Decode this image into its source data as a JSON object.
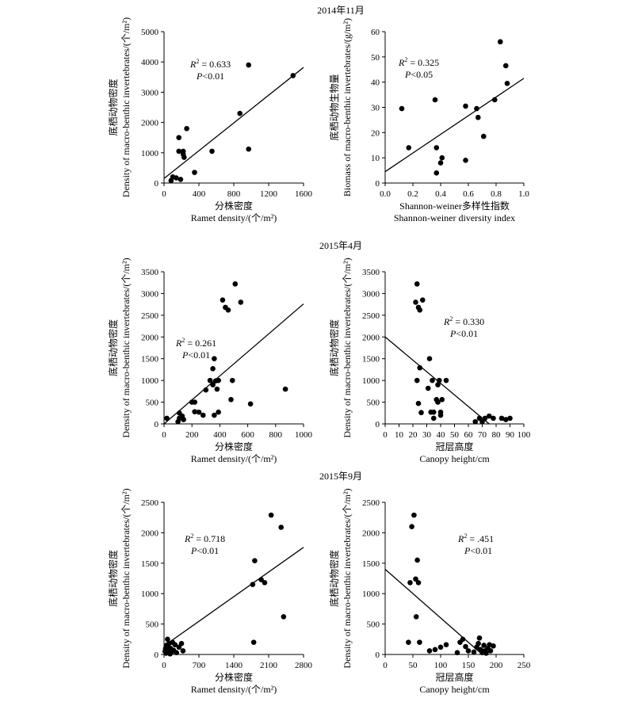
{
  "sections": [
    {
      "title": "2014年11月"
    },
    {
      "title": "2015年4月"
    },
    {
      "title": "2015年9月"
    }
  ],
  "chart_data": [
    {
      "type": "scatter",
      "section": "2014年11月",
      "xlabel_cn": "分株密度",
      "xlabel_en": "Ramet density/(个/m²)",
      "ylabel_cn": "底栖动物密度",
      "ylabel_en": "Density of macro-benthic invertebrates/(个/m²)",
      "xlim": [
        0,
        1600
      ],
      "ylim": [
        0,
        5000
      ],
      "xticks": [
        "0",
        "400",
        "800",
        "1200",
        "1600"
      ],
      "yticks": [
        "0",
        "1000",
        "2000",
        "3000",
        "4000",
        "5000"
      ],
      "annotation": {
        "r2_label": "R",
        "r2_sup": "2",
        "r2_value": " = 0.633",
        "p_label": "P",
        "p_value": "<0.01"
      },
      "points": [
        [
          80,
          80
        ],
        [
          100,
          200
        ],
        [
          140,
          170
        ],
        [
          170,
          1500
        ],
        [
          170,
          1050
        ],
        [
          220,
          950
        ],
        [
          220,
          1050
        ],
        [
          230,
          850
        ],
        [
          260,
          1800
        ],
        [
          350,
          350
        ],
        [
          190,
          120
        ],
        [
          550,
          1050
        ],
        [
          870,
          2300
        ],
        [
          970,
          3900
        ],
        [
          970,
          1120
        ],
        [
          1480,
          3550
        ]
      ],
      "fit": [
        [
          0,
          150
        ],
        [
          1600,
          3820
        ]
      ]
    },
    {
      "type": "scatter",
      "section": "2014年11月",
      "xlabel_cn": "Shannon-weiner多样性指数",
      "xlabel_en": "Shannon-weiner diversity index",
      "ylabel_cn": "底栖动物生物量",
      "ylabel_en": "Biomass of macro-benthic invertebrates/(g/m²)",
      "xlim": [
        0,
        1.0
      ],
      "ylim": [
        0,
        60
      ],
      "xticks": [
        "0.0",
        "0.2",
        "0.4",
        "0.6",
        "0.8",
        "1.0"
      ],
      "yticks": [
        "0",
        "10",
        "20",
        "30",
        "40",
        "50",
        "60"
      ],
      "annotation": {
        "r2_label": "R",
        "r2_sup": "2",
        "r2_value": " = 0.325",
        "p_label": "P",
        "p_value": "<0.05"
      },
      "points": [
        [
          0.12,
          29.5
        ],
        [
          0.17,
          14
        ],
        [
          0.36,
          33
        ],
        [
          0.37,
          14
        ],
        [
          0.37,
          4
        ],
        [
          0.4,
          8
        ],
        [
          0.41,
          10
        ],
        [
          0.58,
          30.5
        ],
        [
          0.58,
          9
        ],
        [
          0.66,
          29.5
        ],
        [
          0.67,
          26
        ],
        [
          0.71,
          18.5
        ],
        [
          0.79,
          33
        ],
        [
          0.83,
          56
        ],
        [
          0.87,
          46.5
        ],
        [
          0.88,
          39.5
        ]
      ],
      "fit": [
        [
          0,
          4.5
        ],
        [
          1.0,
          41.5
        ]
      ]
    },
    {
      "type": "scatter",
      "section": "2015年4月",
      "xlabel_cn": "分株密度",
      "xlabel_en": "Ramet density/(个/m²)",
      "ylabel_cn": "底栖动物密度",
      "ylabel_en": "Density of macro-benthic invertebrates/(个/m²)",
      "xlim": [
        0,
        1000
      ],
      "ylim": [
        0,
        3500
      ],
      "xticks": [
        "0",
        "200",
        "400",
        "600",
        "800",
        "1000"
      ],
      "yticks": [
        "0",
        "500",
        "1000",
        "1500",
        "2000",
        "2500",
        "3000",
        "3500"
      ],
      "annotation": {
        "r2_label": "R",
        "r2_sup": "2",
        "r2_value": " = 0.261",
        "p_label": "P",
        "p_value": "<0.01"
      },
      "points": [
        [
          20,
          130
        ],
        [
          100,
          50
        ],
        [
          110,
          250
        ],
        [
          110,
          130
        ],
        [
          130,
          180
        ],
        [
          140,
          100
        ],
        [
          200,
          500
        ],
        [
          220,
          280
        ],
        [
          220,
          500
        ],
        [
          250,
          270
        ],
        [
          280,
          200
        ],
        [
          300,
          780
        ],
        [
          330,
          1000
        ],
        [
          350,
          1270
        ],
        [
          350,
          900
        ],
        [
          360,
          1500
        ],
        [
          360,
          200
        ],
        [
          370,
          990
        ],
        [
          380,
          800
        ],
        [
          390,
          1000
        ],
        [
          390,
          270
        ],
        [
          420,
          2850
        ],
        [
          440,
          2680
        ],
        [
          460,
          2620
        ],
        [
          480,
          560
        ],
        [
          490,
          1000
        ],
        [
          510,
          3220
        ],
        [
          550,
          2800
        ],
        [
          620,
          460
        ],
        [
          870,
          800
        ]
      ],
      "fit": [
        [
          0,
          0
        ],
        [
          1000,
          2760
        ]
      ]
    },
    {
      "type": "scatter",
      "section": "2015年4月",
      "xlabel_cn": "冠层高度",
      "xlabel_en": "Canopy  height/cm",
      "ylabel_cn": "底栖动物密度",
      "ylabel_en": "Density of macro-benthic invertebrates/(个/m²)",
      "xlim": [
        0,
        100
      ],
      "ylim": [
        0,
        3500
      ],
      "xticks": [
        "0",
        "10",
        "20",
        "30",
        "40",
        "50",
        "60",
        "70",
        "80",
        "90",
        "100"
      ],
      "yticks": [
        "0",
        "500",
        "1000",
        "1500",
        "2000",
        "2500",
        "3000",
        "3500"
      ],
      "annotation": {
        "r2_label": "R",
        "r2_sup": "2",
        "r2_value": " = 0.330",
        "p_label": "P",
        "p_value": "<0.01"
      },
      "points": [
        [
          22,
          2800
        ],
        [
          23,
          3220
        ],
        [
          24,
          2680
        ],
        [
          25,
          2620
        ],
        [
          27,
          2850
        ],
        [
          23,
          1000
        ],
        [
          25,
          1290
        ],
        [
          24,
          470
        ],
        [
          26,
          260
        ],
        [
          31,
          820
        ],
        [
          32,
          1500
        ],
        [
          33,
          270
        ],
        [
          34,
          1000
        ],
        [
          35,
          130
        ],
        [
          35,
          270
        ],
        [
          37,
          560
        ],
        [
          38,
          900
        ],
        [
          38,
          500
        ],
        [
          39,
          1000
        ],
        [
          40,
          270
        ],
        [
          41,
          560
        ],
        [
          40,
          200
        ],
        [
          44,
          1000
        ],
        [
          65,
          50
        ],
        [
          68,
          130
        ],
        [
          70,
          50
        ],
        [
          72,
          130
        ],
        [
          75,
          180
        ],
        [
          78,
          130
        ],
        [
          84,
          130
        ],
        [
          87,
          100
        ],
        [
          90,
          130
        ]
      ],
      "fit": [
        [
          0,
          2000
        ],
        [
          75,
          0
        ]
      ]
    },
    {
      "type": "scatter",
      "section": "2015年9月",
      "xlabel_cn": "分株密度",
      "xlabel_en": "Ramet density/(个/m²)",
      "ylabel_cn": "底栖动物密度",
      "ylabel_en": "Density of macro-benthic invertebrates/(个/m²)",
      "xlim": [
        0,
        2800
      ],
      "ylim": [
        0,
        2500
      ],
      "xticks": [
        "0",
        "700",
        "1400",
        "2100",
        "2800"
      ],
      "yticks": [
        "0",
        "500",
        "1000",
        "1500",
        "2000",
        "2500"
      ],
      "annotation": {
        "r2_label": "R",
        "r2_sup": "2",
        "r2_value": " = 0.718",
        "p_label": "P",
        "p_value": "<0.01"
      },
      "points": [
        [
          20,
          50
        ],
        [
          30,
          100
        ],
        [
          40,
          20
        ],
        [
          50,
          150
        ],
        [
          60,
          80
        ],
        [
          70,
          250
        ],
        [
          80,
          30
        ],
        [
          90,
          120
        ],
        [
          100,
          180
        ],
        [
          110,
          60
        ],
        [
          120,
          10
        ],
        [
          130,
          100
        ],
        [
          150,
          40
        ],
        [
          170,
          200
        ],
        [
          190,
          70
        ],
        [
          220,
          160
        ],
        [
          250,
          30
        ],
        [
          300,
          120
        ],
        [
          350,
          180
        ],
        [
          380,
          60
        ],
        [
          1780,
          1150
        ],
        [
          1820,
          1540
        ],
        [
          1950,
          1230
        ],
        [
          2020,
          1180
        ],
        [
          2150,
          2290
        ],
        [
          2350,
          2090
        ],
        [
          2400,
          620
        ],
        [
          1800,
          200
        ]
      ],
      "fit": [
        [
          0,
          140
        ],
        [
          2800,
          1760
        ]
      ]
    },
    {
      "type": "scatter",
      "section": "2015年9月",
      "xlabel_cn": "冠层高度",
      "xlabel_en": "Canopy  height/cm",
      "ylabel_cn": "底栖动物密度",
      "ylabel_en": "Density of macro-benthic invertebrates/(个/m²)",
      "xlim": [
        0,
        250
      ],
      "ylim": [
        0,
        2500
      ],
      "xticks": [
        "0",
        "50",
        "100",
        "150",
        "200",
        "250"
      ],
      "yticks": [
        "0",
        "500",
        "1000",
        "1500",
        "2000",
        "2500"
      ],
      "annotation": {
        "r2_label": "R",
        "r2_sup": "2",
        "r2_value": " = .451",
        "p_label": "P",
        "p_value": "<0.01"
      },
      "points": [
        [
          42,
          200
        ],
        [
          45,
          1180
        ],
        [
          48,
          2100
        ],
        [
          52,
          2290
        ],
        [
          55,
          1240
        ],
        [
          56,
          620
        ],
        [
          58,
          1550
        ],
        [
          60,
          1180
        ],
        [
          62,
          200
        ],
        [
          80,
          60
        ],
        [
          90,
          80
        ],
        [
          100,
          120
        ],
        [
          110,
          160
        ],
        [
          130,
          30
        ],
        [
          135,
          200
        ],
        [
          140,
          250
        ],
        [
          145,
          130
        ],
        [
          150,
          60
        ],
        [
          160,
          40
        ],
        [
          165,
          120
        ],
        [
          168,
          180
        ],
        [
          170,
          270
        ],
        [
          172,
          80
        ],
        [
          175,
          30
        ],
        [
          178,
          150
        ],
        [
          180,
          60
        ],
        [
          182,
          20
        ],
        [
          185,
          100
        ],
        [
          188,
          160
        ],
        [
          190,
          60
        ],
        [
          195,
          140
        ]
      ],
      "fit": [
        [
          0,
          1400
        ],
        [
          175,
          0
        ]
      ]
    }
  ]
}
